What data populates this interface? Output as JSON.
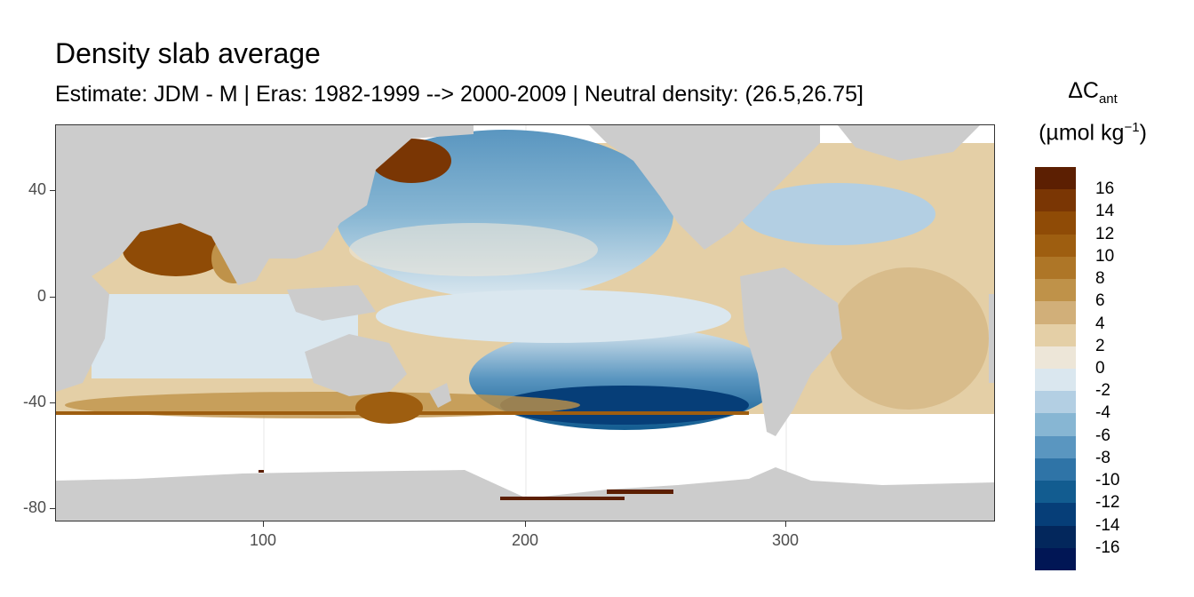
{
  "header": {
    "title": "Density slab average",
    "subtitle": "Estimate: JDM - M | Eras: 1982-1999 --> 2000-2009 | Neutral density: (26.5,26.75]"
  },
  "axes": {
    "xlim": [
      20,
      380
    ],
    "ylim": [
      -85,
      65
    ],
    "x_ticks": [
      {
        "value": 100,
        "label": "100"
      },
      {
        "value": 200,
        "label": "200"
      },
      {
        "value": 300,
        "label": "300"
      }
    ],
    "y_ticks": [
      {
        "value": 40,
        "label": "40"
      },
      {
        "value": 0,
        "label": "0"
      },
      {
        "value": -40,
        "label": "-40"
      },
      {
        "value": -80,
        "label": "-80"
      }
    ]
  },
  "legend": {
    "title_main": "ΔC",
    "title_sub": "ant",
    "unit_base": "(µmol kg",
    "unit_sup": "−1",
    "unit_close": ")",
    "labels": [
      "16",
      "14",
      "12",
      "10",
      "8",
      "6",
      "4",
      "2",
      "0",
      "-2",
      "-4",
      "-6",
      "-8",
      "-10",
      "-12",
      "-14",
      "-16"
    ],
    "colors": [
      "#5c1f02",
      "#7a3604",
      "#8f4b06",
      "#9e5e10",
      "#ae7627",
      "#bf9249",
      "#d1af79",
      "#e4cfa6",
      "#ede6d8",
      "#dae7ef",
      "#b3cfe3",
      "#87b6d3",
      "#5a96c0",
      "#2f74a7",
      "#125c90",
      "#063e78",
      "#03275c",
      "#011655"
    ]
  },
  "map_colors": {
    "land": "#cccccc",
    "nodata": "#ffffff",
    "gridline": "#ebebeb"
  }
}
